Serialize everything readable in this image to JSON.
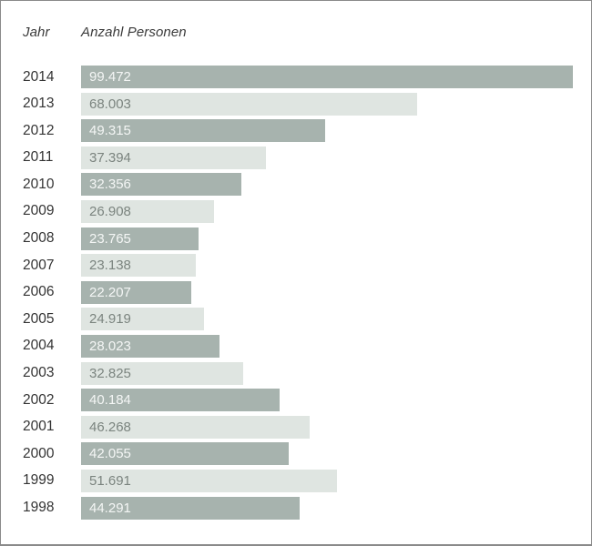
{
  "header": {
    "year_label": "Jahr",
    "count_label": "Anzahl Personen"
  },
  "colors": {
    "bar_dark": "#a7b3ae",
    "bar_light": "#dfe5e1",
    "value_text_on_dark": "#f4f6f5",
    "value_text_on_light": "#7b847f",
    "year_text": "#333333",
    "header_text": "#3a3a3a",
    "frame_border": "#8a8a8a",
    "background": "#ffffff"
  },
  "chart_data": {
    "type": "bar",
    "orientation": "horizontal",
    "title": "",
    "xlabel": "Anzahl Personen",
    "ylabel": "Jahr",
    "xlim": [
      0,
      99472
    ],
    "grid": false,
    "legend": false,
    "value_format": "thousands separated by period (German)",
    "bar_style": "alternating dark and light sage, value label inside bar",
    "categories": [
      "2014",
      "2013",
      "2012",
      "2011",
      "2010",
      "2009",
      "2008",
      "2007",
      "2006",
      "2005",
      "2004",
      "2003",
      "2002",
      "2001",
      "2000",
      "1999",
      "1998"
    ],
    "values": [
      99472,
      68003,
      49315,
      37394,
      32356,
      26908,
      23765,
      23138,
      22207,
      24919,
      28023,
      32825,
      40184,
      46268,
      42055,
      51691,
      44291
    ],
    "value_labels": [
      "99.472",
      "68.003",
      "49.315",
      "37.394",
      "32.356",
      "26.908",
      "23.765",
      "23.138",
      "22.207",
      "24.919",
      "28.023",
      "32.825",
      "40.184",
      "46.268",
      "42.055",
      "51.691",
      "44.291"
    ]
  }
}
